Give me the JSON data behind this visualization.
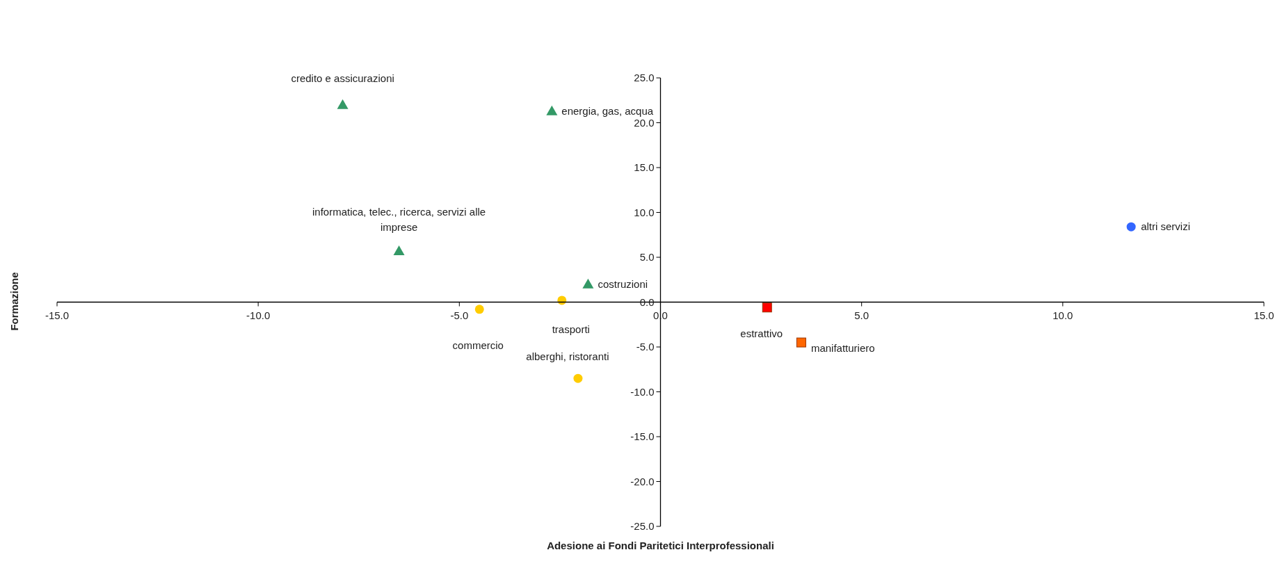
{
  "chart_data": {
    "type": "scatter",
    "xlabel": "Adesione ai Fondi Paritetici Interprofessionali",
    "ylabel": "Formazione",
    "xlim": [
      -15,
      15
    ],
    "xticks": [
      {
        "value": -15,
        "label": "-15.0"
      },
      {
        "value": -10,
        "label": "-10.0"
      },
      {
        "value": -5,
        "label": "-5.0"
      },
      {
        "value": 0,
        "label": "0.0"
      },
      {
        "value": 5,
        "label": "5.0"
      },
      {
        "value": 10,
        "label": "10.0"
      },
      {
        "value": 15,
        "label": "15.0"
      }
    ],
    "ylim": [
      -25,
      25
    ],
    "yticks": [
      {
        "value": -25,
        "label": "-25.0"
      },
      {
        "value": -20,
        "label": "-20.0"
      },
      {
        "value": -15,
        "label": "-15.0"
      },
      {
        "value": -10,
        "label": "-10.0"
      },
      {
        "value": -5,
        "label": "-5.0"
      },
      {
        "value": 0,
        "label": "0.0"
      },
      {
        "value": 5,
        "label": "5.0"
      },
      {
        "value": 10,
        "label": "10.0"
      },
      {
        "value": 15,
        "label": "15.0"
      },
      {
        "value": 20,
        "label": "20.0"
      },
      {
        "value": 25,
        "label": "25.0"
      }
    ],
    "series": [
      {
        "color": "#339966",
        "marker": "triangle",
        "x": [
          -7.9,
          -2.7,
          -6.5,
          -1.8
        ],
        "values": [
          22.0,
          21.3,
          5.7,
          2.0
        ]
      },
      {
        "color": "#ffcc00",
        "marker": "circle",
        "x": [
          -2.45,
          -4.5,
          -2.05
        ],
        "values": [
          0.2,
          -0.8,
          -8.5
        ]
      },
      {
        "color": "#ff0000",
        "marker": "square",
        "x": [
          2.65
        ],
        "values": [
          -0.6
        ]
      },
      {
        "color": "#ff6600",
        "marker": "square",
        "x": [
          3.5
        ],
        "values": [
          -4.5
        ]
      },
      {
        "color": "#3366ff",
        "marker": "circle",
        "x": [
          11.7
        ],
        "values": [
          8.4
        ]
      }
    ],
    "annotations": [
      {
        "text": "credito e assicurazioni",
        "x": -7.9,
        "y": 22.0
      },
      {
        "text": "energia, gas, acqua",
        "x": -2.7,
        "y": 21.3
      },
      {
        "text": "informatica, telec., ricerca, servizi alle imprese",
        "x": -6.5,
        "y": 5.7
      },
      {
        "text": "costruzioni",
        "x": -1.8,
        "y": 2.0
      },
      {
        "text": "trasporti",
        "x": -2.45,
        "y": 0.2
      },
      {
        "text": "commercio",
        "x": -4.5,
        "y": -0.8
      },
      {
        "text": "alberghi, ristoranti",
        "x": -2.05,
        "y": -8.5
      },
      {
        "text": "estrattivo",
        "x": 2.65,
        "y": -0.6
      },
      {
        "text": "manifatturiero",
        "x": 3.5,
        "y": -4.5
      },
      {
        "text": "altri servizi",
        "x": 11.7,
        "y": 8.4
      }
    ]
  }
}
